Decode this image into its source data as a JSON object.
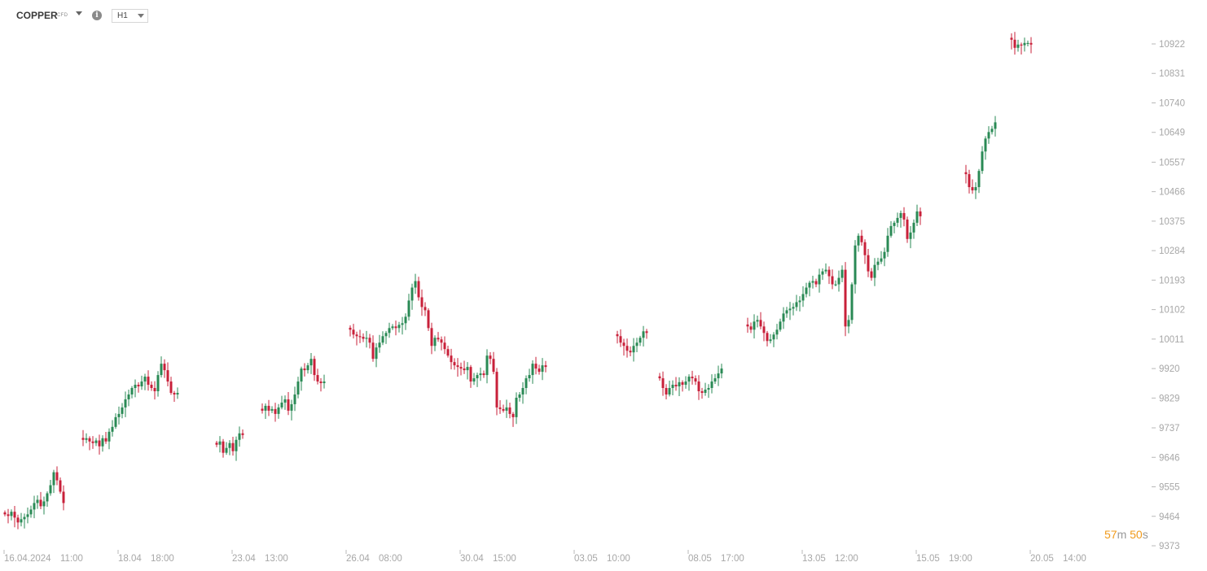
{
  "header": {
    "symbol": "COPPER",
    "symbol_type": "CFD",
    "timeframe": "H1"
  },
  "icons": {
    "symbol_dropdown": "chevron-down-icon",
    "info": "info-icon",
    "timeframe_dropdown": "chevron-down-icon"
  },
  "colors": {
    "up": "#2a8a55",
    "down": "#c8203a",
    "countdown": "#f09a1a",
    "axis_text": "#a7a7a7"
  },
  "countdown": {
    "minutes": "57",
    "minutes_unit": "m",
    "seconds": "50",
    "seconds_unit": "s"
  },
  "chart_data": {
    "type": "candlestick",
    "y_ticks": [
      10922,
      10831,
      10740,
      10649,
      10557,
      10466,
      10375,
      10284,
      10193,
      10102,
      10011,
      9920,
      9829,
      9737,
      9646,
      9555,
      9464,
      9373
    ],
    "ylim": [
      9373,
      10990
    ],
    "x_ticks": [
      {
        "date": "16.04.2024",
        "time": "11:00",
        "index": 0
      },
      {
        "date": "18.04",
        "time": "18:00",
        "index": 35
      },
      {
        "date": "23.04",
        "time": "13:00",
        "index": 70
      },
      {
        "date": "26.04",
        "time": "08:00",
        "index": 105
      },
      {
        "date": "30.04",
        "time": "15:00",
        "index": 140
      },
      {
        "date": "03.05",
        "time": "10:00",
        "index": 175
      },
      {
        "date": "08.05",
        "time": "17:00",
        "index": 210
      },
      {
        "date": "13.05",
        "time": "12:00",
        "index": 245
      },
      {
        "date": "15.05",
        "time": "19:00",
        "index": 280
      },
      {
        "date": "20.05",
        "time": "14:00",
        "index": 315
      }
    ],
    "segments": [
      {
        "start": 0,
        "closes": [
          9470,
          9465,
          9478,
          9460,
          9445,
          9455,
          9462,
          9470,
          9485,
          9505,
          9515,
          9495,
          9510,
          9535,
          9560,
          9600,
          9575,
          9540,
          9505
        ]
      },
      {
        "start": 24,
        "closes": [
          9700,
          9705,
          9695,
          9690,
          9698,
          9680,
          9705,
          9695,
          9725,
          9740,
          9770,
          9780,
          9800,
          9825,
          9840,
          9860,
          9870,
          9865,
          9880,
          9895,
          9870,
          9860,
          9850,
          9900,
          9935,
          9915,
          9880,
          9845,
          9840,
          9845
        ]
      },
      {
        "start": 65,
        "closes": [
          9685,
          9695,
          9660,
          9675,
          9690,
          9665,
          9700,
          9720,
          9715
        ]
      },
      {
        "start": 79,
        "closes": [
          9790,
          9805,
          9790,
          9795,
          9780,
          9800,
          9815,
          9825,
          9790,
          9810,
          9840,
          9880,
          9920,
          9915,
          9930,
          9950,
          9900,
          9880,
          9875,
          9880
        ]
      },
      {
        "start": 106,
        "closes": [
          10040,
          10025,
          10020,
          10018,
          10012,
          10015,
          10000,
          9950,
          9985,
          10000,
          10020,
          10030,
          10045,
          10050,
          10045,
          10055,
          10060,
          10080,
          10130,
          10170,
          10190,
          10140,
          10110,
          10100,
          10045,
          9990,
          10015,
          10010,
          10000,
          9980,
          9960,
          9940,
          9930,
          9925,
          9920,
          9915,
          9925,
          9880,
          9890,
          9900,
          9905,
          9900,
          9960,
          9950,
          9910,
          9800,
          9795,
          9790,
          9800,
          9780,
          9770,
          9830,
          9840,
          9860,
          9890,
          9900,
          9935,
          9920,
          9910,
          9930,
          9925
        ]
      },
      {
        "start": 188,
        "closes": [
          10020,
          10000,
          9990,
          9975,
          9970,
          9990,
          10000,
          10015,
          10035,
          10030
        ]
      },
      {
        "start": 201,
        "closes": [
          9890,
          9860,
          9840,
          9860,
          9870,
          9865,
          9878,
          9870,
          9880,
          9895,
          9890,
          9880,
          9850,
          9845,
          9855,
          9860,
          9880,
          9890,
          9905,
          9920
        ]
      },
      {
        "start": 228,
        "closes": [
          10050,
          10040,
          10065,
          10070,
          10050,
          10030,
          10005,
          10010,
          10025,
          10040,
          10065,
          10090,
          10100,
          10105,
          10110,
          10125,
          10130,
          10150,
          10170,
          10185,
          10190,
          10180,
          10210,
          10220,
          10225,
          10205,
          10180,
          10180,
          10200,
          10225,
          10050,
          10070,
          10180,
          10300,
          10330,
          10310,
          10270,
          10220,
          10200,
          10240,
          10250,
          10260,
          10280,
          10330,
          10360,
          10370,
          10385,
          10400,
          10380,
          10320,
          10340,
          10370,
          10405,
          10390
        ]
      },
      {
        "start": 295,
        "closes": [
          10520,
          10480,
          10470,
          10480,
          10530,
          10590,
          10630,
          10650,
          10660,
          10680
        ]
      },
      {
        "start": 309,
        "closes": [
          10935,
          10910,
          10920,
          10918,
          10925,
          10925,
          10920
        ]
      }
    ]
  }
}
